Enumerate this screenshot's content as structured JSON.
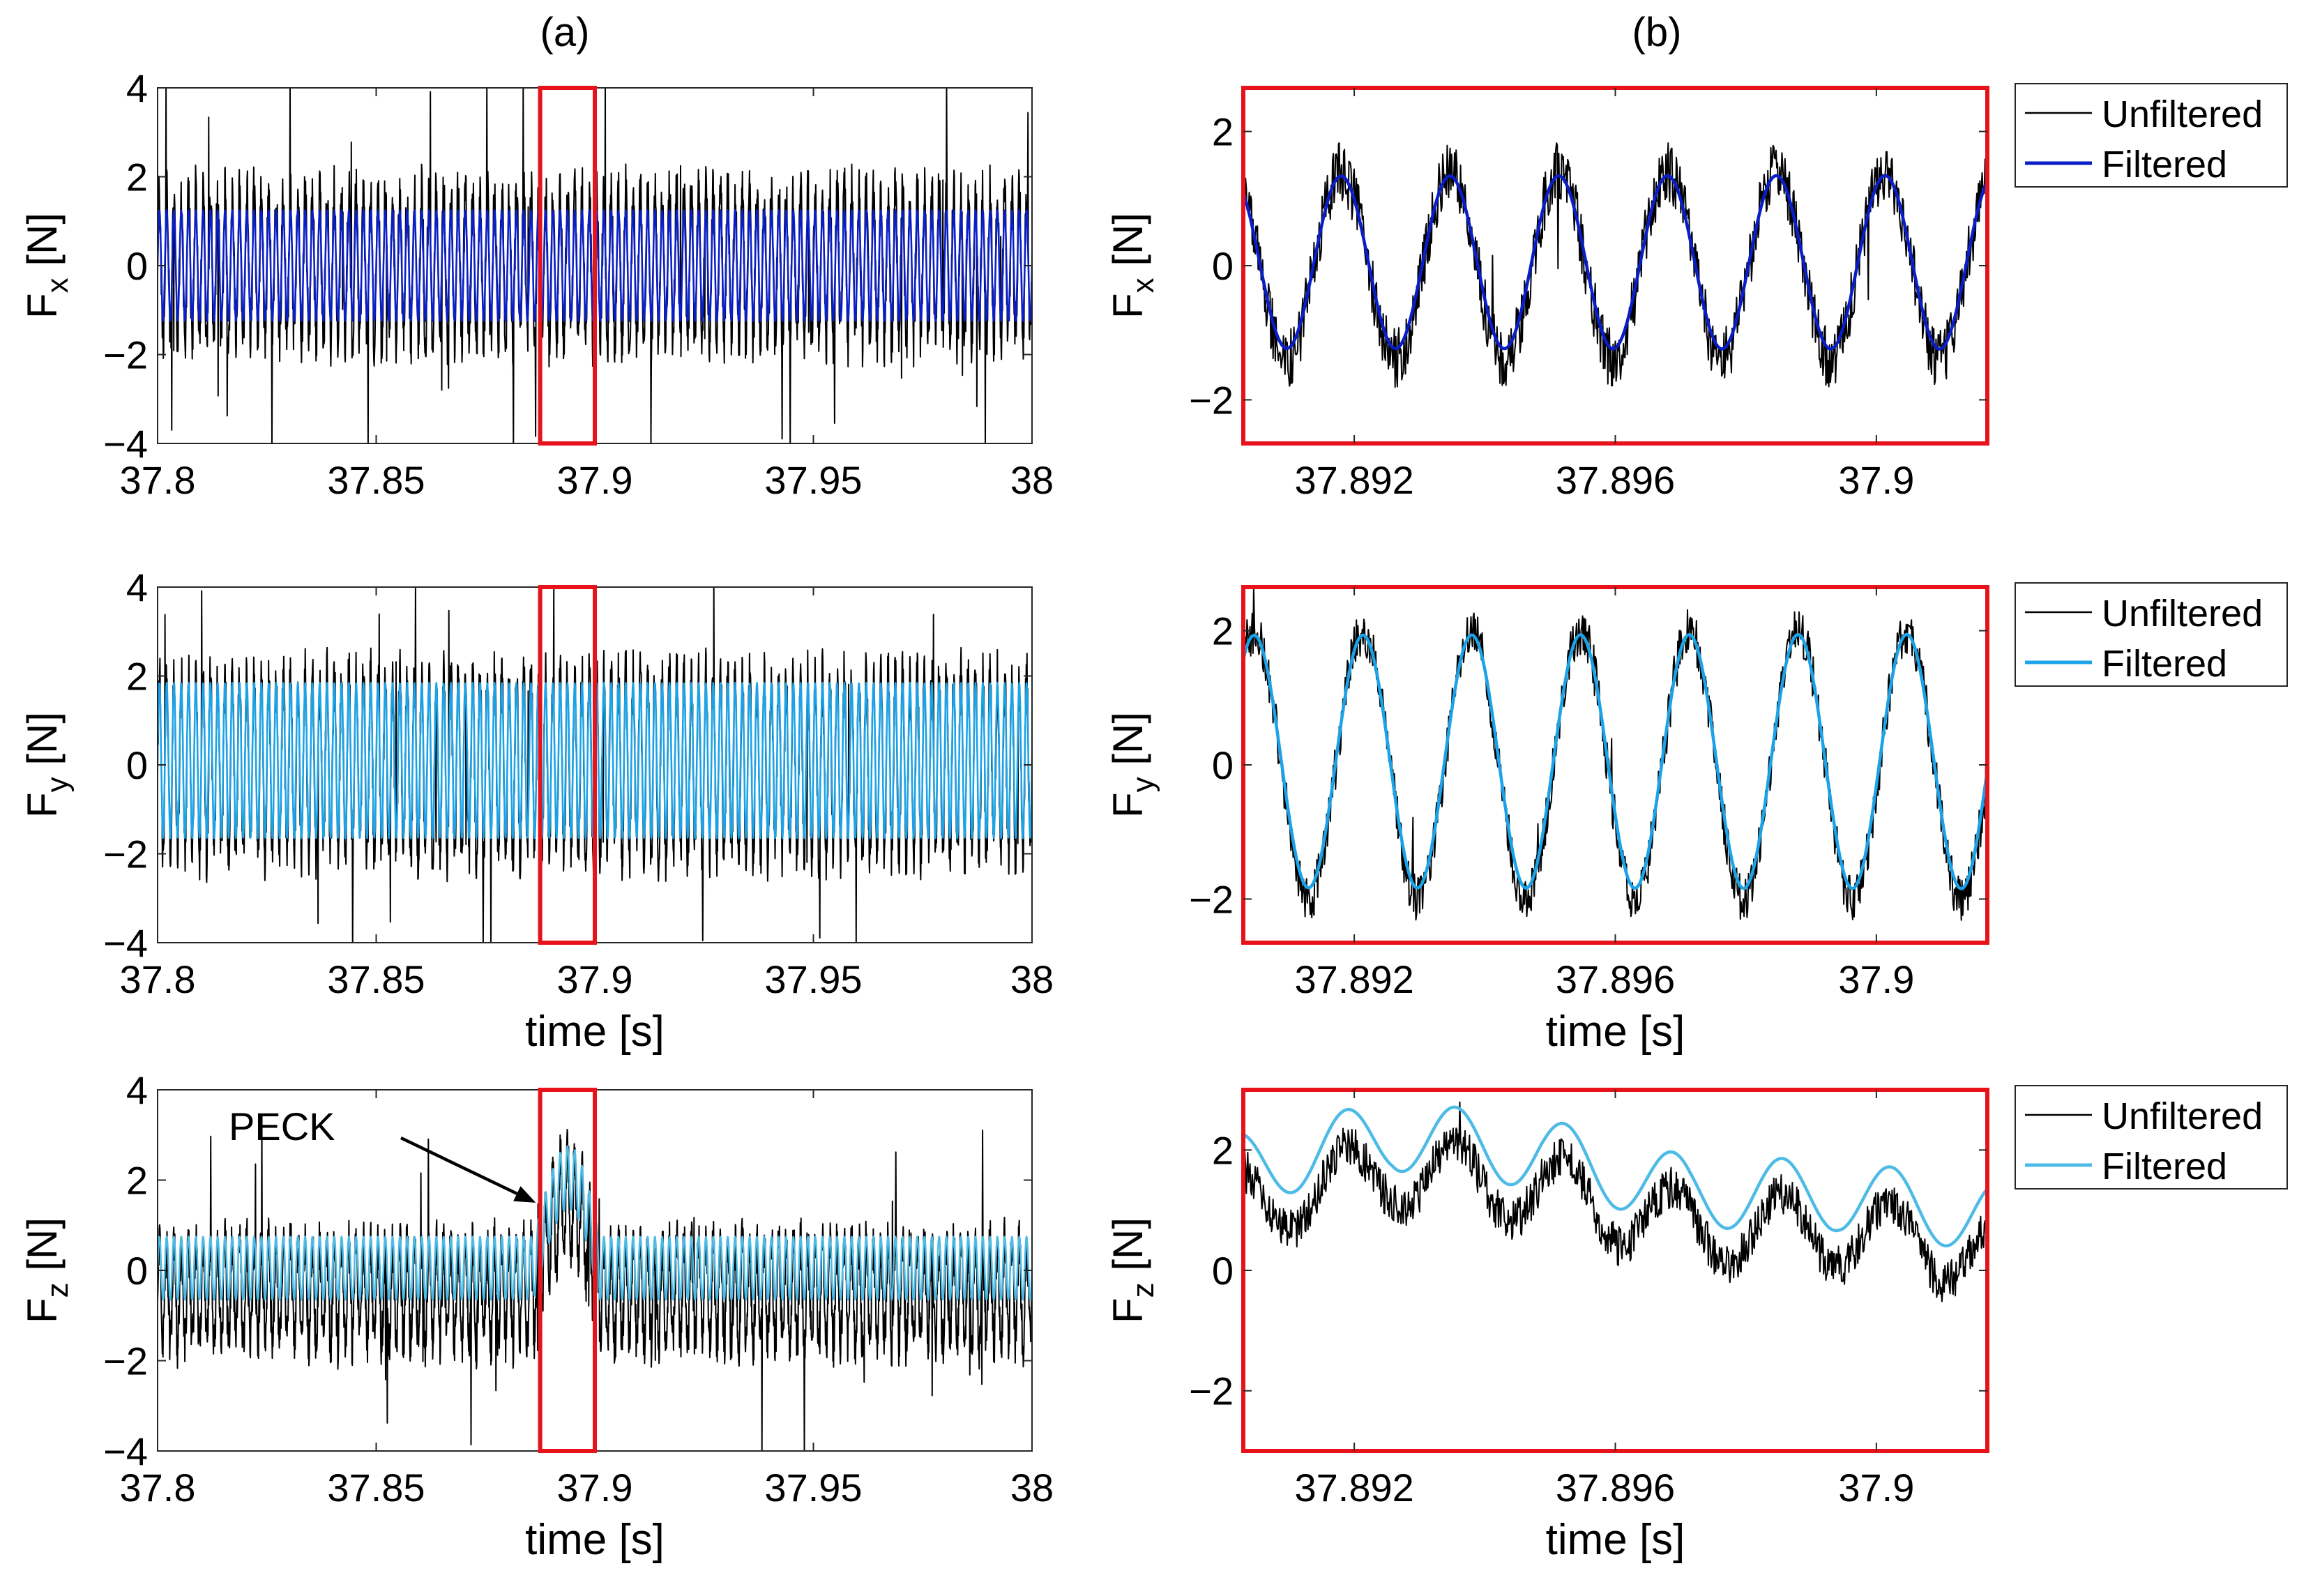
{
  "figure": {
    "column_labels": [
      "(a)",
      "(b)"
    ],
    "annotation": "PECK"
  },
  "colors": {
    "unfiltered": "#000000",
    "fx_filtered": "#0a1ec8",
    "fy_filtered": "#1aa3e8",
    "fz_filtered": "#4dbbe6",
    "zoom_box": "#e8121a",
    "axis": "#262626"
  },
  "chart_data": [
    {
      "id": "a1",
      "type": "line",
      "title": "",
      "xlabel": "",
      "ylabel_base": "F",
      "ylabel_sub": "x",
      "ylabel_unit": " [N]",
      "xlim": [
        37.8,
        38.0
      ],
      "ylim": [
        -4,
        4
      ],
      "xticks": [
        37.8,
        37.85,
        37.9,
        37.95,
        38.0
      ],
      "xtick_labels": [
        "37.8",
        "37.85",
        "37.9",
        "37.95",
        "38"
      ],
      "yticks": [
        -4,
        -2,
        0,
        2,
        4
      ],
      "ytick_labels": [
        "−4",
        "−2",
        "0",
        "2",
        "4"
      ],
      "zoom_box": {
        "x": [
          37.8875,
          37.9
        ],
        "y": [
          -4,
          4
        ]
      },
      "signal": {
        "freq_hz": 600,
        "unfiltered_amplitude": 1.6,
        "unfiltered_offset": 0,
        "noise": 0.7,
        "filtered_amplitude": 1.25,
        "filtered_offset": 0,
        "spike_rate": 0.012,
        "spike_amplitude": 4.0
      },
      "series": [
        {
          "name": "Unfiltered",
          "color_key": "unfiltered",
          "width": 2
        },
        {
          "name": "Filtered",
          "color_key": "fx_filtered",
          "width": 2.5
        }
      ]
    },
    {
      "id": "b1",
      "type": "line",
      "title": "",
      "xlabel": "",
      "ylabel_base": "F",
      "ylabel_sub": "x",
      "ylabel_unit": " [N]",
      "xlim": [
        37.8903,
        37.9017
      ],
      "ylim": [
        -2.65,
        2.65
      ],
      "xticks": [
        37.892,
        37.896,
        37.9
      ],
      "xtick_labels": [
        "37.892",
        "37.896",
        "37.9"
      ],
      "yticks": [
        -2,
        0,
        2
      ],
      "ytick_labels": [
        "−2",
        "0",
        "2"
      ],
      "frame_color_key": "zoom_box",
      "legend": {
        "position": "outside-right-top",
        "entries": [
          "Unfiltered",
          "Filtered"
        ]
      },
      "signal": {
        "freq_hz": 600,
        "phase_cycles": 0.35,
        "unfiltered_amplitude": 1.35,
        "unfiltered_offset": 0,
        "noise": 0.45,
        "filtered_amplitude": 1.25,
        "filtered_offset": 0.05,
        "amp_variation": 0.12,
        "spike_rate": 0.004,
        "spike_amplitude": 1.4
      },
      "series": [
        {
          "name": "Unfiltered",
          "color_key": "unfiltered",
          "width": 2
        },
        {
          "name": "Filtered",
          "color_key": "fx_filtered",
          "width": 4.5
        }
      ]
    },
    {
      "id": "a2",
      "type": "line",
      "title": "",
      "xlabel": "time [s]",
      "ylabel_base": "F",
      "ylabel_sub": "y",
      "ylabel_unit": " [N]",
      "xlim": [
        37.8,
        38.0
      ],
      "ylim": [
        -4,
        4
      ],
      "xticks": [
        37.8,
        37.85,
        37.9,
        37.95,
        38.0
      ],
      "xtick_labels": [
        "37.8",
        "37.85",
        "37.9",
        "37.95",
        "38"
      ],
      "yticks": [
        -4,
        -2,
        0,
        2,
        4
      ],
      "ytick_labels": [
        "−4",
        "−2",
        "0",
        "2",
        "4"
      ],
      "zoom_box": {
        "x": [
          37.8875,
          37.9
        ],
        "y": [
          -4,
          4
        ]
      },
      "signal": {
        "freq_hz": 600,
        "unfiltered_amplitude": 2.0,
        "unfiltered_offset": 0,
        "noise": 0.65,
        "filtered_amplitude": 1.75,
        "filtered_offset": 0.1,
        "spike_rate": 0.012,
        "spike_amplitude": 4.0
      },
      "series": [
        {
          "name": "Unfiltered",
          "color_key": "unfiltered",
          "width": 2
        },
        {
          "name": "Filtered",
          "color_key": "fy_filtered",
          "width": 2.5
        }
      ]
    },
    {
      "id": "b2",
      "type": "line",
      "title": "",
      "xlabel": "time [s]",
      "ylabel_base": "F",
      "ylabel_sub": "y",
      "ylabel_unit": " [N]",
      "xlim": [
        37.8903,
        37.9017
      ],
      "ylim": [
        -2.65,
        2.65
      ],
      "xticks": [
        37.892,
        37.896,
        37.9
      ],
      "xtick_labels": [
        "37.892",
        "37.896",
        "37.9"
      ],
      "yticks": [
        -2,
        0,
        2
      ],
      "ytick_labels": [
        "−2",
        "0",
        "2"
      ],
      "frame_color_key": "zoom_box",
      "legend": {
        "position": "outside-right-top",
        "entries": [
          "Unfiltered",
          "Filtered"
        ]
      },
      "signal": {
        "freq_hz": 600,
        "phase_cycles": 0.15,
        "unfiltered_amplitude": 1.85,
        "unfiltered_offset": 0,
        "noise": 0.35,
        "filtered_amplitude": 1.75,
        "filtered_offset": 0.05,
        "amp_variation": 0.12,
        "spike_rate": 0.004,
        "spike_amplitude": 1.2
      },
      "series": [
        {
          "name": "Unfiltered",
          "color_key": "unfiltered",
          "width": 2
        },
        {
          "name": "Filtered",
          "color_key": "fy_filtered",
          "width": 4.5
        }
      ]
    },
    {
      "id": "a3",
      "type": "line",
      "title": "",
      "xlabel": "time [s]",
      "ylabel_base": "F",
      "ylabel_sub": "z",
      "ylabel_unit": " [N]",
      "xlim": [
        37.8,
        38.0
      ],
      "ylim": [
        -4,
        4
      ],
      "xticks": [
        37.8,
        37.85,
        37.9,
        37.95,
        38.0
      ],
      "xtick_labels": [
        "37.8",
        "37.85",
        "37.9",
        "37.95",
        "38"
      ],
      "yticks": [
        -4,
        -2,
        0,
        2,
        4
      ],
      "ytick_labels": [
        "−4",
        "−2",
        "0",
        "2",
        "4"
      ],
      "zoom_box": {
        "x": [
          37.8875,
          37.9
        ],
        "y": [
          -4,
          4
        ]
      },
      "peck": {
        "x": [
          37.886,
          37.901
        ],
        "peak": 2.0,
        "arrow_tip": [
          37.8865,
          1.5
        ]
      },
      "signal": {
        "freq_hz": 600,
        "unfiltered_amplitude": 1.1,
        "unfiltered_offset": -0.5,
        "noise": 0.6,
        "filtered_amplitude": 0.7,
        "filtered_offset": 0.05,
        "spike_rate": 0.01,
        "spike_amplitude": 3.2
      },
      "series": [
        {
          "name": "Unfiltered",
          "color_key": "unfiltered",
          "width": 2
        },
        {
          "name": "Filtered",
          "color_key": "fz_filtered",
          "width": 2.5
        }
      ]
    },
    {
      "id": "b3",
      "type": "line",
      "title": "",
      "xlabel": "time [s]",
      "ylabel_base": "F",
      "ylabel_sub": "z",
      "ylabel_unit": " [N]",
      "xlim": [
        37.8903,
        37.9017
      ],
      "ylim": [
        -3,
        3
      ],
      "xticks": [
        37.892,
        37.896,
        37.9
      ],
      "xtick_labels": [
        "37.892",
        "37.896",
        "37.9"
      ],
      "yticks": [
        -2,
        0,
        2
      ],
      "ytick_labels": [
        "−2",
        "0",
        "2"
      ],
      "frame_color_key": "zoom_box",
      "legend": {
        "position": "outside-right-top",
        "entries": [
          "Unfiltered",
          "Filtered"
        ]
      },
      "signal": {
        "freq_hz": 600,
        "phase_cycles": 0.3,
        "unfiltered_amplitude": 0.65,
        "unfiltered_offset": -0.55,
        "noise": 0.35,
        "filtered_amplitude": 0.65,
        "filtered_offset": 0.05,
        "trend": [
          1.65,
          2.2,
          1.9,
          1.25,
          1.2,
          0.85
        ],
        "amp_variation": 0.1,
        "spike_rate": 0.003,
        "spike_amplitude": 1.0
      },
      "series": [
        {
          "name": "Unfiltered",
          "color_key": "unfiltered",
          "width": 2
        },
        {
          "name": "Filtered",
          "color_key": "fz_filtered",
          "width": 4.5
        }
      ]
    }
  ]
}
